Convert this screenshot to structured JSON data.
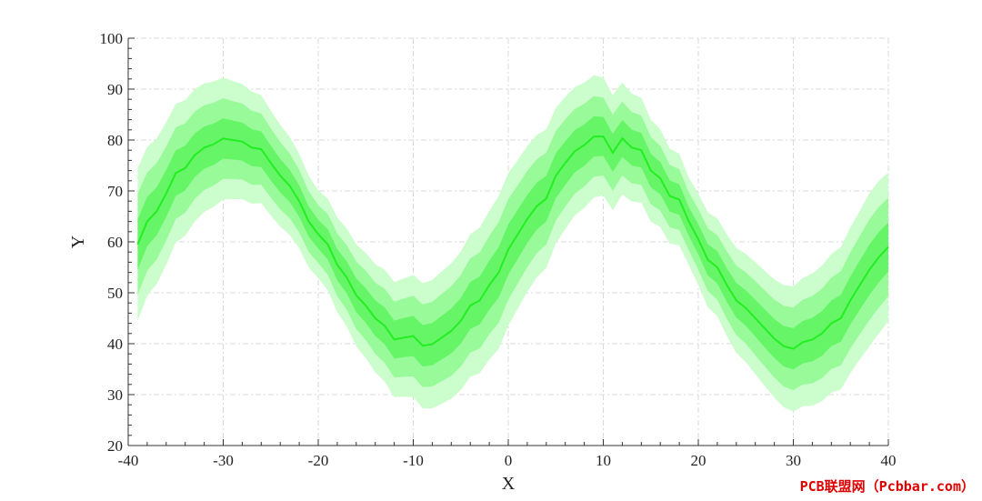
{
  "chart_data": {
    "type": "line",
    "title": "",
    "xlabel": "X",
    "ylabel": "Y",
    "xlim": [
      -40,
      40
    ],
    "ylim": [
      20,
      100
    ],
    "xticks": [
      "-40",
      "-30",
      "-20",
      "-10",
      "0",
      "10",
      "20",
      "30",
      "40"
    ],
    "yticks": [
      "20",
      "30",
      "40",
      "50",
      "60",
      "70",
      "80",
      "90",
      "100"
    ],
    "grid": true,
    "colors": {
      "line": "#22ee22",
      "band_inner": "#66f566",
      "band_middle": "#99fa99",
      "band_outer": "#ccfdcc"
    },
    "series": [
      {
        "x": [
          -39,
          -38,
          -37,
          -36,
          -35,
          -34,
          -33,
          -32,
          -31,
          -30,
          -29,
          -28,
          -27,
          -26,
          -25,
          -24,
          -23,
          -22,
          -21,
          -20,
          -19,
          -18,
          -17,
          -16,
          -15,
          -14,
          -13,
          -12,
          -11,
          -10,
          -9,
          -8,
          -7,
          -6,
          -5,
          -4,
          -3,
          -2,
          -1,
          0,
          1,
          2,
          3,
          4,
          5,
          6,
          7,
          8,
          9,
          10,
          11,
          12,
          13,
          14,
          15,
          16,
          17,
          18,
          19,
          20,
          21,
          22,
          23,
          24,
          25,
          26,
          27,
          28,
          29,
          30,
          31,
          32,
          33,
          34,
          35,
          36,
          37,
          38,
          39,
          40
        ],
        "y": [
          59.5,
          64,
          66,
          69.5,
          73.5,
          74.5,
          77,
          78.5,
          79.2,
          80.3,
          80,
          79.7,
          78.5,
          78.2,
          75.5,
          73,
          71,
          68,
          64,
          61.5,
          59.5,
          55.5,
          53,
          49.5,
          47.5,
          45,
          43.5,
          40.8,
          41.2,
          41.5,
          39.6,
          39.9,
          41.2,
          42.5,
          44.5,
          47.5,
          48.5,
          51.5,
          54,
          58.5,
          61.5,
          64.5,
          67,
          68.5,
          73,
          75.5,
          77.8,
          79,
          80.7,
          80.7,
          77.5,
          80.3,
          78.5,
          78,
          74,
          72.5,
          69,
          68.3,
          64,
          60.5,
          56.5,
          55,
          51.5,
          48.5,
          47,
          45,
          43,
          41,
          39.5,
          39,
          40.3,
          40.8,
          42,
          44,
          45,
          48.5,
          51.5,
          54.5,
          57,
          59
        ],
        "band_outer": [
          15,
          14.6,
          14.3,
          14,
          13.6,
          13.3,
          13,
          12.6,
          12.3,
          12,
          11.6,
          11.3,
          11,
          10.6,
          10.3,
          10,
          9.6,
          9.3,
          9,
          8.6,
          9,
          9.3,
          9.6,
          10,
          10.3,
          10.6,
          11,
          11.3,
          11.6,
          12,
          12.3,
          12.6,
          13,
          13.3,
          13.6,
          14,
          14.3,
          14.6,
          15,
          15,
          14.6,
          14.3,
          14,
          13.6,
          13.3,
          13,
          12.6,
          12.3,
          12,
          11.6,
          11.3,
          11,
          10.6,
          10.3,
          10,
          9.6,
          9.3,
          9,
          8.6,
          9,
          9.3,
          9.6,
          10,
          10.3,
          10.6,
          11,
          11.3,
          11.6,
          12,
          12.3,
          12.6,
          13,
          13.3,
          13.6,
          14,
          14.3,
          14.6,
          15,
          15,
          14.6
        ]
      }
    ]
  },
  "watermark": "PCB联盟网（Pcbbar.com）"
}
